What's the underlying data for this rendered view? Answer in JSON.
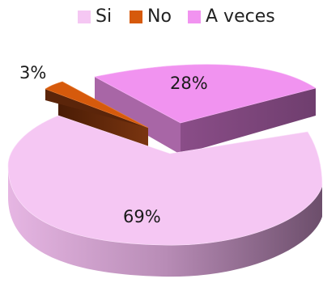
{
  "chart_data": {
    "type": "pie",
    "style": "3d-exploded",
    "legend_position": "top",
    "categories": [
      "Si",
      "No",
      "A veces"
    ],
    "values": [
      69,
      3,
      28
    ],
    "labels": [
      "69%",
      "3%",
      "28%"
    ],
    "colors": [
      "#f5c7f3",
      "#d65a0c",
      "#f193f0"
    ]
  }
}
